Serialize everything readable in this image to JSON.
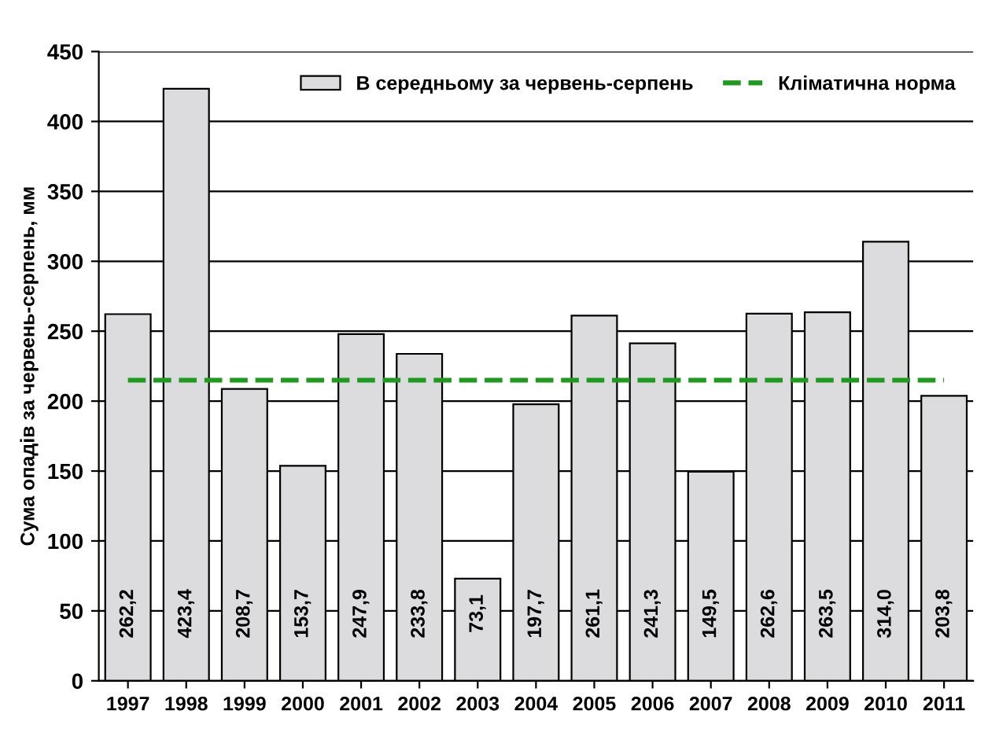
{
  "chart_data": {
    "type": "bar",
    "ylabel": "Сума опадів за червень-серпень, мм",
    "categories": [
      "1997",
      "1998",
      "1999",
      "2000",
      "2001",
      "2002",
      "2003",
      "2004",
      "2005",
      "2006",
      "2007",
      "2008",
      "2009",
      "2010",
      "2011"
    ],
    "series": [
      {
        "name": "В середньому за червень-серпень",
        "color": "#dcdcde",
        "values": [
          262.2,
          423.4,
          208.7,
          153.7,
          247.9,
          233.8,
          73.1,
          197.7,
          261.1,
          241.3,
          149.5,
          262.6,
          263.5,
          314.0,
          203.8
        ],
        "value_labels": [
          "262,2",
          "423,4",
          "208,7",
          "153,7",
          "247,9",
          "233,8",
          "73,1",
          "197,7",
          "261,1",
          "241,3",
          "149,5",
          "262,6",
          "263,5",
          "314,0",
          "203,8"
        ]
      },
      {
        "type": "line",
        "name": "Кліматична норма",
        "color": "#1e9a1e",
        "line_style": "dashed",
        "marker": "none",
        "values": [
          215,
          215,
          215,
          215,
          215,
          215,
          215,
          215,
          215,
          215,
          215,
          215,
          215,
          215,
          215
        ]
      }
    ],
    "ylim": [
      0,
      450
    ],
    "yticks": [
      0,
      50,
      100,
      150,
      200,
      250,
      300,
      350,
      400,
      450
    ],
    "grid": "y",
    "legend": "top right"
  }
}
